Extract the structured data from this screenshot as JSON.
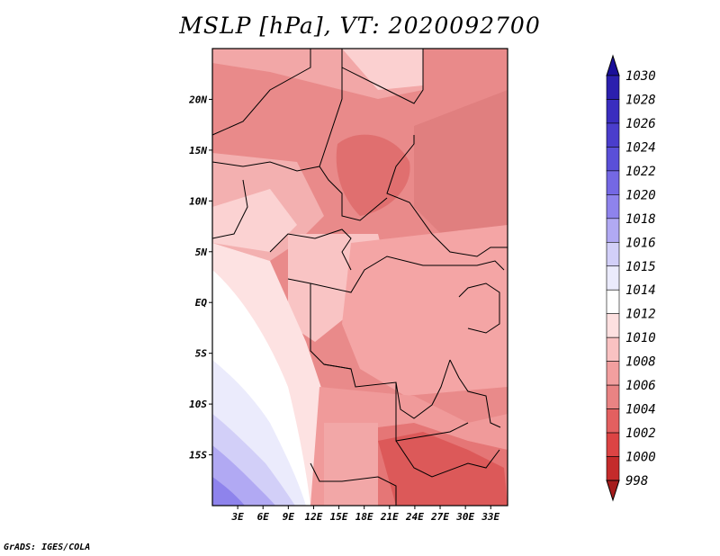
{
  "title": "MSLP [hPa], VT: 2020092700",
  "credit": "GrADS: IGES/COLA",
  "map": {
    "lon_range": [
      0,
      35
    ],
    "lat_range": [
      -20,
      25
    ],
    "lat_labels": [
      "20N",
      "15N",
      "10N",
      "5N",
      "EQ",
      "5S",
      "10S",
      "15S"
    ],
    "lon_labels": [
      "3E",
      "6E",
      "9E",
      "12E",
      "15E",
      "18E",
      "21E",
      "24E",
      "27E",
      "30E",
      "33E"
    ]
  },
  "colorbar": {
    "levels": [
      "1030",
      "1028",
      "1026",
      "1024",
      "1022",
      "1020",
      "1018",
      "1016",
      "1015",
      "1014",
      "1012",
      "1010",
      "1008",
      "1006",
      "1004",
      "1002",
      "1000",
      "998"
    ],
    "colors": [
      "#1a0f99",
      "#2b1fae",
      "#3a2dbf",
      "#4a3dcc",
      "#5a4fd8",
      "#7468e4",
      "#8e83ec",
      "#b1a9f3",
      "#d2cff8",
      "#ebebfc",
      "#ffffff",
      "#fde0e0",
      "#f9c2c2",
      "#f29f9f",
      "#e98383",
      "#e36060",
      "#dc4444",
      "#c42b2b",
      "#a51c1c"
    ]
  }
}
